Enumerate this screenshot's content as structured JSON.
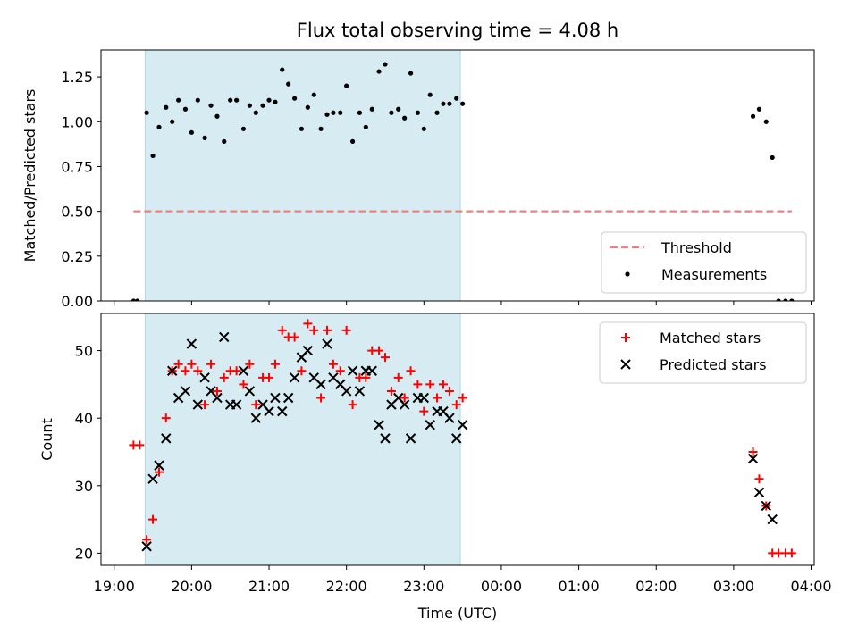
{
  "title": "Flux total observing time = 4.08 h",
  "colors": {
    "shade": "#add8e6",
    "threshold": "#f08080",
    "measurement": "#000000",
    "matched": "#ff0000",
    "predicted": "#000000"
  },
  "chart_data": [
    {
      "type": "scatter",
      "title": "Flux total observing time = 4.08 h",
      "xlabel": "",
      "ylabel": "Matched/Predicted stars",
      "x_unit": "hours since 19:00 UTC",
      "xlim": [
        18.83,
        28.04
      ],
      "ylim": [
        0,
        1.4
      ],
      "yticks": [
        0,
        0.25,
        0.5,
        0.75,
        1.0,
        1.25
      ],
      "ytick_labels": [
        "0.00",
        "0.25",
        "0.50",
        "0.75",
        "1.00",
        "1.25"
      ],
      "xticks": [
        19,
        20,
        21,
        22,
        23,
        24,
        25,
        26,
        27,
        28
      ],
      "xtick_labels": [],
      "shaded_span": [
        19.4,
        23.47
      ],
      "legend": {
        "placement": "lower right",
        "entries": [
          "Threshold",
          "Measurements"
        ]
      },
      "threshold": {
        "name": "Threshold",
        "x": [
          19.25,
          27.75
        ],
        "y": 0.5
      },
      "series": [
        {
          "name": "Measurements",
          "points": [
            [
              19.25,
              0.0
            ],
            [
              19.3,
              0.0
            ],
            [
              19.42,
              1.05
            ],
            [
              19.5,
              0.81
            ],
            [
              19.58,
              0.97
            ],
            [
              19.67,
              1.08
            ],
            [
              19.75,
              1.0
            ],
            [
              19.83,
              1.12
            ],
            [
              19.92,
              1.07
            ],
            [
              20.0,
              0.94
            ],
            [
              20.08,
              1.12
            ],
            [
              20.17,
              0.91
            ],
            [
              20.25,
              1.09
            ],
            [
              20.33,
              1.03
            ],
            [
              20.42,
              0.89
            ],
            [
              20.5,
              1.12
            ],
            [
              20.58,
              1.12
            ],
            [
              20.67,
              0.96
            ],
            [
              20.75,
              1.09
            ],
            [
              20.83,
              1.05
            ],
            [
              20.92,
              1.09
            ],
            [
              21.0,
              1.12
            ],
            [
              21.08,
              1.11
            ],
            [
              21.17,
              1.29
            ],
            [
              21.25,
              1.21
            ],
            [
              21.33,
              1.13
            ],
            [
              21.42,
              0.96
            ],
            [
              21.5,
              1.08
            ],
            [
              21.58,
              1.15
            ],
            [
              21.67,
              0.96
            ],
            [
              21.75,
              1.04
            ],
            [
              21.83,
              1.05
            ],
            [
              21.92,
              1.05
            ],
            [
              22.0,
              1.2
            ],
            [
              22.08,
              0.89
            ],
            [
              22.17,
              1.05
            ],
            [
              22.25,
              0.97
            ],
            [
              22.33,
              1.07
            ],
            [
              22.42,
              1.28
            ],
            [
              22.5,
              1.32
            ],
            [
              22.58,
              1.05
            ],
            [
              22.67,
              1.07
            ],
            [
              22.75,
              1.02
            ],
            [
              22.83,
              1.27
            ],
            [
              22.92,
              1.05
            ],
            [
              23.0,
              0.96
            ],
            [
              23.08,
              1.15
            ],
            [
              23.17,
              1.05
            ],
            [
              23.25,
              1.1
            ],
            [
              23.33,
              1.1
            ],
            [
              23.42,
              1.13
            ],
            [
              23.5,
              1.1
            ],
            [
              27.25,
              1.03
            ],
            [
              27.33,
              1.07
            ],
            [
              27.42,
              1.0
            ],
            [
              27.5,
              0.8
            ],
            [
              27.58,
              0.0
            ],
            [
              27.67,
              0.0
            ],
            [
              27.75,
              0.0
            ]
          ]
        }
      ]
    },
    {
      "type": "scatter",
      "title": "",
      "xlabel": "Time (UTC)",
      "ylabel": "Count",
      "x_unit": "hours since 19:00 UTC",
      "xlim": [
        18.83,
        28.04
      ],
      "ylim": [
        18.2,
        55.5
      ],
      "yticks": [
        20,
        30,
        40,
        50
      ],
      "ytick_labels": [
        "20",
        "30",
        "40",
        "50"
      ],
      "xticks": [
        19,
        20,
        21,
        22,
        23,
        24,
        25,
        26,
        27,
        28
      ],
      "xtick_labels": [
        "19:00",
        "20:00",
        "21:00",
        "22:00",
        "23:00",
        "00:00",
        "01:00",
        "02:00",
        "03:00",
        "04:00"
      ],
      "shaded_span": [
        19.4,
        23.47
      ],
      "legend": {
        "placement": "upper right",
        "entries": [
          "Matched stars",
          "Predicted stars"
        ]
      },
      "series": [
        {
          "name": "Matched stars",
          "marker": "plus",
          "points": [
            [
              19.25,
              36
            ],
            [
              19.33,
              36
            ],
            [
              19.42,
              22
            ],
            [
              19.5,
              25
            ],
            [
              19.58,
              32
            ],
            [
              19.67,
              40
            ],
            [
              19.75,
              47
            ],
            [
              19.83,
              48
            ],
            [
              19.92,
              47
            ],
            [
              20.0,
              48
            ],
            [
              20.08,
              47
            ],
            [
              20.17,
              42
            ],
            [
              20.25,
              48
            ],
            [
              20.33,
              44
            ],
            [
              20.42,
              46
            ],
            [
              20.5,
              47
            ],
            [
              20.58,
              47
            ],
            [
              20.67,
              45
            ],
            [
              20.75,
              48
            ],
            [
              20.83,
              42
            ],
            [
              20.92,
              46
            ],
            [
              21.0,
              46
            ],
            [
              21.08,
              48
            ],
            [
              21.17,
              53
            ],
            [
              21.25,
              52
            ],
            [
              21.33,
              52
            ],
            [
              21.42,
              47
            ],
            [
              21.5,
              54
            ],
            [
              21.58,
              53
            ],
            [
              21.67,
              43
            ],
            [
              21.75,
              53
            ],
            [
              21.83,
              48
            ],
            [
              21.92,
              47
            ],
            [
              22.0,
              53
            ],
            [
              22.08,
              42
            ],
            [
              22.17,
              46
            ],
            [
              22.25,
              46
            ],
            [
              22.33,
              50
            ],
            [
              22.42,
              50
            ],
            [
              22.5,
              49
            ],
            [
              22.58,
              44
            ],
            [
              22.67,
              46
            ],
            [
              22.75,
              43
            ],
            [
              22.83,
              47
            ],
            [
              22.92,
              45
            ],
            [
              23.0,
              41
            ],
            [
              23.08,
              45
            ],
            [
              23.17,
              43
            ],
            [
              23.25,
              45
            ],
            [
              23.33,
              44
            ],
            [
              23.42,
              42
            ],
            [
              23.5,
              43
            ],
            [
              27.25,
              35
            ],
            [
              27.33,
              31
            ],
            [
              27.42,
              27
            ],
            [
              27.5,
              20
            ],
            [
              27.58,
              20
            ],
            [
              27.67,
              20
            ],
            [
              27.75,
              20
            ]
          ]
        },
        {
          "name": "Predicted stars",
          "marker": "x",
          "points": [
            [
              19.42,
              21
            ],
            [
              19.5,
              31
            ],
            [
              19.58,
              33
            ],
            [
              19.67,
              37
            ],
            [
              19.75,
              47
            ],
            [
              19.83,
              43
            ],
            [
              19.92,
              44
            ],
            [
              20.0,
              51
            ],
            [
              20.08,
              42
            ],
            [
              20.17,
              46
            ],
            [
              20.25,
              44
            ],
            [
              20.33,
              43
            ],
            [
              20.42,
              52
            ],
            [
              20.5,
              42
            ],
            [
              20.58,
              42
            ],
            [
              20.67,
              47
            ],
            [
              20.75,
              44
            ],
            [
              20.83,
              40
            ],
            [
              20.92,
              42
            ],
            [
              21.0,
              41
            ],
            [
              21.08,
              43
            ],
            [
              21.17,
              41
            ],
            [
              21.25,
              43
            ],
            [
              21.33,
              46
            ],
            [
              21.42,
              49
            ],
            [
              21.5,
              50
            ],
            [
              21.58,
              46
            ],
            [
              21.67,
              45
            ],
            [
              21.75,
              51
            ],
            [
              21.83,
              46
            ],
            [
              21.92,
              45
            ],
            [
              22.0,
              44
            ],
            [
              22.08,
              47
            ],
            [
              22.17,
              44
            ],
            [
              22.25,
              47
            ],
            [
              22.33,
              47
            ],
            [
              22.42,
              39
            ],
            [
              22.5,
              37
            ],
            [
              22.58,
              42
            ],
            [
              22.67,
              43
            ],
            [
              22.75,
              42
            ],
            [
              22.83,
              37
            ],
            [
              22.92,
              43
            ],
            [
              23.0,
              43
            ],
            [
              23.08,
              39
            ],
            [
              23.17,
              41
            ],
            [
              23.25,
              41
            ],
            [
              23.33,
              40
            ],
            [
              23.42,
              37
            ],
            [
              23.5,
              39
            ],
            [
              27.25,
              34
            ],
            [
              27.33,
              29
            ],
            [
              27.42,
              27
            ],
            [
              27.5,
              25
            ]
          ]
        }
      ]
    }
  ]
}
